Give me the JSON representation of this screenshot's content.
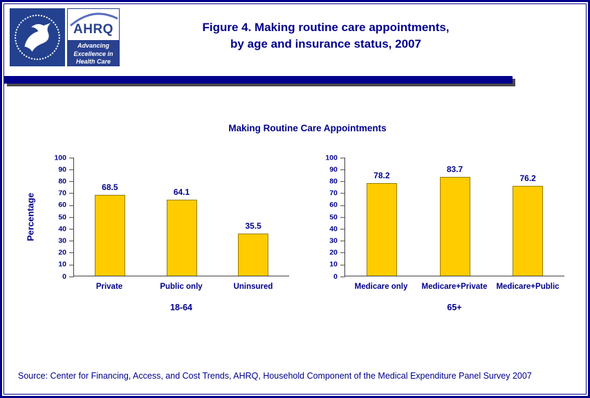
{
  "page": {
    "title_line1": "Figure 4. Making routine care appointments,",
    "title_line2": "by age and insurance status, 2007",
    "source": "Source: Center for Financing, Access, and Cost Trends, AHRQ, Household Component of the Medical Expenditure Panel Survey 2007"
  },
  "logos": {
    "ahrq_name": "AHRQ",
    "ahrq_tagline_line1": "Advancing",
    "ahrq_tagline_line2": "Excellence in",
    "ahrq_tagline_line3": "Health Care"
  },
  "colors": {
    "accent_navy": "#00008B",
    "bar_gold": "#FFCC00",
    "logo_blue": "#29418F"
  },
  "chart_data": {
    "type": "bar",
    "title": "Making Routine Care Appointments",
    "ylabel": "Percentage",
    "xlabel": "",
    "ylim": [
      0,
      100
    ],
    "ytick_step": 10,
    "grid": false,
    "legend": "none",
    "bar_color": "#FFCC00",
    "groups": [
      {
        "label": "18-64",
        "categories": [
          "Private",
          "Public only",
          "Uninsured"
        ],
        "values": [
          68.5,
          64.1,
          35.5
        ]
      },
      {
        "label": "65+",
        "categories": [
          "Medicare only",
          "Medicare+Private",
          "Medicare+Public"
        ],
        "values": [
          78.2,
          83.7,
          76.2
        ]
      }
    ]
  }
}
